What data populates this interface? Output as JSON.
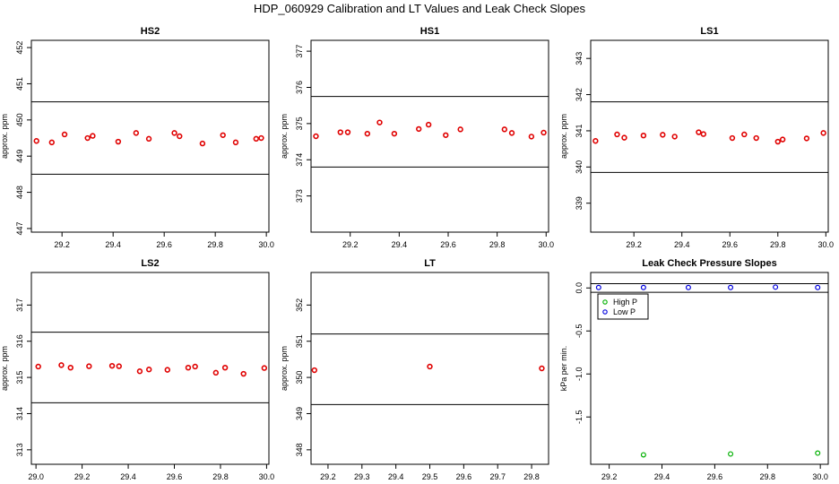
{
  "title": "HDP_060929  Calibration and LT Values and Leak Check Slopes",
  "colors": {
    "point": "#e00000",
    "high_p": "#00b000",
    "low_p": "#0000dd",
    "axis": "#000000"
  },
  "chart_data": [
    {
      "type": "scatter",
      "title": "HS2",
      "ylabel": "approx. ppm",
      "xlim": [
        29.08,
        30.01
      ],
      "ylim": [
        446.9,
        452.2
      ],
      "xticks": [
        29.2,
        29.4,
        29.6,
        29.8,
        30.0
      ],
      "xtick_labels": [
        "29.2",
        "29.4",
        "29.6",
        "29.8",
        "30.0"
      ],
      "yticks": [
        447,
        448,
        449,
        450,
        451,
        452
      ],
      "ytick_labels": [
        "447",
        "448",
        "449",
        "450",
        "451",
        "452"
      ],
      "hlines": [
        450.5,
        448.5
      ],
      "x": [
        29.1,
        29.16,
        29.21,
        29.3,
        29.32,
        29.42,
        29.49,
        29.54,
        29.64,
        29.66,
        29.75,
        29.83,
        29.88,
        29.96,
        29.98
      ],
      "y": [
        449.42,
        449.38,
        449.6,
        449.5,
        449.56,
        449.4,
        449.64,
        449.48,
        449.64,
        449.55,
        449.35,
        449.58,
        449.38,
        449.48,
        449.5
      ]
    },
    {
      "type": "scatter",
      "title": "HS1",
      "ylabel": "approx. ppm",
      "xlim": [
        29.04,
        30.01
      ],
      "ylim": [
        372.0,
        377.3
      ],
      "xticks": [
        29.2,
        29.4,
        29.6,
        29.8,
        30.0
      ],
      "xtick_labels": [
        "29.2",
        "29.4",
        "29.6",
        "29.8",
        "30.0"
      ],
      "yticks": [
        373,
        374,
        375,
        376,
        377
      ],
      "ytick_labels": [
        "373",
        "374",
        "375",
        "376",
        "377"
      ],
      "hlines": [
        375.75,
        373.8
      ],
      "x": [
        29.06,
        29.16,
        29.19,
        29.27,
        29.32,
        29.38,
        29.48,
        29.52,
        29.59,
        29.65,
        29.83,
        29.86,
        29.94,
        29.99
      ],
      "y": [
        374.65,
        374.76,
        374.76,
        374.72,
        375.03,
        374.72,
        374.85,
        374.97,
        374.68,
        374.84,
        374.84,
        374.74,
        374.64,
        374.75
      ]
    },
    {
      "type": "scatter",
      "title": "LS1",
      "ylabel": "approx. ppm",
      "xlim": [
        29.02,
        30.01
      ],
      "ylim": [
        338.2,
        343.5
      ],
      "xticks": [
        29.2,
        29.4,
        29.6,
        29.8,
        30.0
      ],
      "xtick_labels": [
        "29.2",
        "29.4",
        "29.6",
        "29.8",
        "30.0"
      ],
      "yticks": [
        339,
        340,
        341,
        342,
        343
      ],
      "ytick_labels": [
        "339",
        "340",
        "341",
        "342",
        "343"
      ],
      "hlines": [
        341.8,
        339.85
      ],
      "x": [
        29.04,
        29.13,
        29.16,
        29.24,
        29.32,
        29.37,
        29.47,
        29.49,
        29.61,
        29.66,
        29.71,
        29.8,
        29.82,
        29.92,
        29.99
      ],
      "y": [
        340.72,
        340.9,
        340.81,
        340.87,
        340.89,
        340.84,
        340.96,
        340.91,
        340.8,
        340.9,
        340.8,
        340.7,
        340.76,
        340.79,
        340.94
      ]
    },
    {
      "type": "scatter",
      "title": "LS2",
      "ylabel": "approx. ppm",
      "xlim": [
        28.98,
        30.01
      ],
      "ylim": [
        312.6,
        317.9
      ],
      "xticks": [
        29.0,
        29.2,
        29.4,
        29.6,
        29.8,
        30.0
      ],
      "xtick_labels": [
        "29.0",
        "29.2",
        "29.4",
        "29.6",
        "29.8",
        "30.0"
      ],
      "yticks": [
        313,
        314,
        315,
        316,
        317
      ],
      "ytick_labels": [
        "313",
        "314",
        "315",
        "316",
        "317"
      ],
      "hlines": [
        316.25,
        314.3
      ],
      "x": [
        29.01,
        29.11,
        29.15,
        29.23,
        29.33,
        29.36,
        29.45,
        29.49,
        29.57,
        29.66,
        29.69,
        29.78,
        29.82,
        29.9,
        29.99
      ],
      "y": [
        315.3,
        315.34,
        315.27,
        315.31,
        315.32,
        315.31,
        315.17,
        315.22,
        315.21,
        315.27,
        315.3,
        315.13,
        315.27,
        315.1,
        315.26
      ]
    },
    {
      "type": "scatter",
      "title": "LT",
      "ylabel": "approx. ppm",
      "xlim": [
        29.15,
        29.85
      ],
      "ylim": [
        347.6,
        352.9
      ],
      "xticks": [
        29.2,
        29.3,
        29.4,
        29.5,
        29.6,
        29.7,
        29.8
      ],
      "xtick_labels": [
        "29.2",
        "29.3",
        "29.4",
        "29.5",
        "29.6",
        "29.7",
        "29.8"
      ],
      "yticks": [
        348,
        349,
        350,
        351,
        352
      ],
      "ytick_labels": [
        "348",
        "349",
        "350",
        "351",
        "352"
      ],
      "hlines": [
        351.2,
        349.25
      ],
      "x": [
        29.16,
        29.5,
        29.83
      ],
      "y": [
        350.2,
        350.3,
        350.25
      ]
    },
    {
      "type": "scatter",
      "title": "Leak Check Pressure Slopes",
      "ylabel": "kPa per min.",
      "xlim": [
        29.13,
        30.03
      ],
      "ylim": [
        -2.05,
        0.18
      ],
      "xticks": [
        29.2,
        29.4,
        29.6,
        29.8,
        30.0
      ],
      "xtick_labels": [
        "29.2",
        "29.4",
        "29.6",
        "29.8",
        "30.0"
      ],
      "yticks": [
        0.0,
        -0.5,
        -1.0,
        -1.5
      ],
      "ytick_labels": [
        "0.0",
        "-0.5",
        "-1.0",
        "-1.5"
      ],
      "hlines": [
        0.05,
        -0.05
      ],
      "legend": {
        "position": "top-left",
        "entries": [
          "High P",
          "Low P"
        ]
      },
      "series": [
        {
          "name": "High P",
          "x": [
            29.33,
            29.66,
            29.99
          ],
          "y": [
            -1.94,
            -1.93,
            -1.92
          ]
        },
        {
          "name": "Low P",
          "x": [
            29.16,
            29.33,
            29.5,
            29.66,
            29.83,
            29.99
          ],
          "y": [
            0.005,
            0.005,
            0.005,
            0.005,
            0.01,
            0.005
          ]
        }
      ]
    }
  ]
}
